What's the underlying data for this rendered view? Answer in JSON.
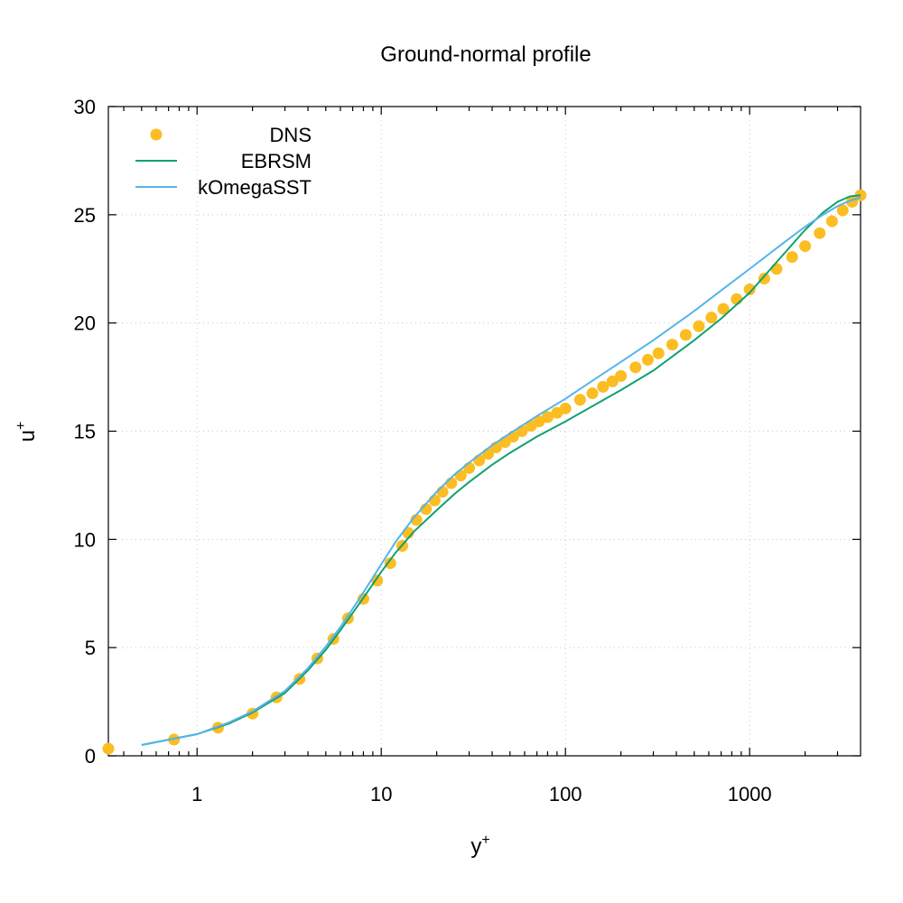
{
  "chart_data": {
    "type": "line",
    "title": "Ground-normal profile",
    "xlabel": "y",
    "xlabel_sup": "+",
    "ylabel": "u",
    "ylabel_sup": "+",
    "xscale": "log",
    "xlim": [
      0.33,
      4000
    ],
    "ylim": [
      0,
      30
    ],
    "xticks": [
      1,
      10,
      100,
      1000
    ],
    "xtick_labels": [
      "1",
      "10",
      "100",
      "1000"
    ],
    "yticks": [
      0,
      5,
      10,
      15,
      20,
      25,
      30
    ],
    "ytick_labels": [
      "0",
      "5",
      "10",
      "15",
      "20",
      "25",
      "30"
    ],
    "grid": true,
    "legend_position": "top-left",
    "series": [
      {
        "name": "DNS",
        "style": "points",
        "color": "#fbbd22",
        "x": [
          0.33,
          0.75,
          1.3,
          2.0,
          2.7,
          3.6,
          4.5,
          5.5,
          6.6,
          8.0,
          9.5,
          11.2,
          13.0,
          14.0,
          15.5,
          17.5,
          19.5,
          21.5,
          24,
          27,
          30,
          34,
          38,
          42,
          47,
          52,
          58,
          65,
          72,
          80,
          90,
          100,
          120,
          140,
          160,
          180,
          200,
          240,
          280,
          320,
          380,
          450,
          530,
          620,
          720,
          850,
          1000,
          1200,
          1400,
          1700,
          2000,
          2400,
          2800,
          3200,
          3600,
          4000
        ],
        "y": [
          0.33,
          0.75,
          1.3,
          1.95,
          2.7,
          3.55,
          4.5,
          5.4,
          6.35,
          7.25,
          8.1,
          8.9,
          9.7,
          10.3,
          10.9,
          11.4,
          11.8,
          12.2,
          12.6,
          12.95,
          13.3,
          13.65,
          13.95,
          14.25,
          14.5,
          14.75,
          15.0,
          15.25,
          15.45,
          15.65,
          15.85,
          16.05,
          16.45,
          16.75,
          17.05,
          17.3,
          17.55,
          17.95,
          18.3,
          18.6,
          19.0,
          19.45,
          19.85,
          20.25,
          20.65,
          21.1,
          21.55,
          22.05,
          22.5,
          23.05,
          23.55,
          24.15,
          24.7,
          25.2,
          25.6,
          25.9
        ]
      },
      {
        "name": "EBRSM",
        "style": "line",
        "color": "#11a070",
        "x": [
          0.5,
          1.0,
          1.5,
          2.0,
          3.0,
          4.0,
          5.0,
          6.0,
          7.0,
          8.0,
          10.0,
          12.0,
          15.0,
          20.0,
          25.0,
          30.0,
          40.0,
          50.0,
          70.0,
          100.0,
          150.0,
          200.0,
          300.0,
          500.0,
          700.0,
          1000.0,
          1500.0,
          2000.0,
          2500.0,
          3000.0,
          3500.0,
          4000.0
        ],
        "y": [
          0.5,
          1.0,
          1.5,
          2.0,
          2.9,
          3.95,
          4.9,
          5.8,
          6.6,
          7.3,
          8.5,
          9.4,
          10.35,
          11.35,
          12.1,
          12.65,
          13.45,
          14.0,
          14.75,
          15.45,
          16.3,
          16.9,
          17.8,
          19.2,
          20.2,
          21.4,
          23.1,
          24.3,
          25.1,
          25.6,
          25.85,
          25.9
        ]
      },
      {
        "name": "kOmegaSST",
        "style": "line",
        "color": "#56b4e9",
        "x": [
          0.5,
          1.0,
          1.5,
          2.0,
          3.0,
          4.0,
          5.0,
          6.0,
          7.0,
          8.0,
          10.0,
          12.0,
          15.0,
          20.0,
          25.0,
          30.0,
          40.0,
          50.0,
          70.0,
          100.0,
          150.0,
          200.0,
          300.0,
          500.0,
          700.0,
          1000.0,
          1500.0,
          2000.0,
          2500.0,
          3000.0,
          3500.0,
          4000.0
        ],
        "y": [
          0.5,
          1.0,
          1.55,
          2.05,
          3.0,
          4.05,
          5.05,
          5.95,
          6.8,
          7.55,
          8.85,
          9.9,
          11.0,
          12.2,
          13.0,
          13.55,
          14.35,
          14.9,
          15.7,
          16.5,
          17.5,
          18.2,
          19.2,
          20.55,
          21.5,
          22.5,
          23.65,
          24.45,
          25.0,
          25.4,
          25.65,
          25.8
        ]
      }
    ]
  }
}
